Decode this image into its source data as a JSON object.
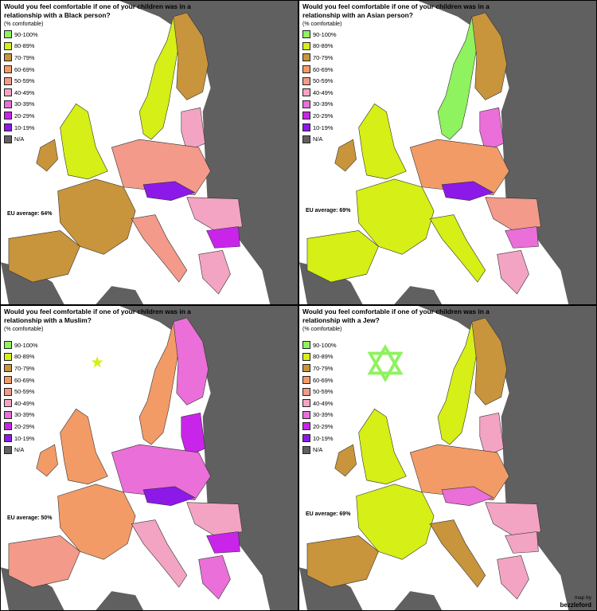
{
  "legend": {
    "labels": [
      "90-100%",
      "80-89%",
      "70-79%",
      "60-69%",
      "50-59%",
      "40-49%",
      "30-39%",
      "20-29%",
      "10-19%",
      "N/A"
    ],
    "colors": [
      "#8ff25f",
      "#d5ef17",
      "#c8943c",
      "#f29b67",
      "#f39a8a",
      "#f3a4c2",
      "#ea6fd8",
      "#c925ea",
      "#8d19e9",
      "#606060"
    ]
  },
  "panels": [
    {
      "title": "Would you feel comfortable if one of your children was in a relationship with a Black person?",
      "subtitle": "(% comfortable)",
      "eu_average": "EU average: 64%",
      "symbol": ""
    },
    {
      "title": "Would you feel comfortable if one of your children was in a relationship with an Asian person?",
      "subtitle": "(% comfortable)",
      "eu_average": "EU average: 69%",
      "symbol": ""
    },
    {
      "title": "Would you feel comfortable if one of your children was in a relationship with a Muslim?",
      "subtitle": "(% comfortable)",
      "eu_average": "EU average: 50%",
      "symbol": "crescent-star"
    },
    {
      "title": "Would you feel comfortable if one of your children was in a relationship with a Jew?",
      "subtitle": "(% comfortable)",
      "eu_average": "EU average: 69%",
      "symbol": "star-of-david"
    }
  ],
  "credit": {
    "prefix": "map by",
    "author": "bezzleford"
  },
  "colors": {
    "sea": "#ffffff",
    "land_na": "#606060",
    "border": "#000000"
  }
}
